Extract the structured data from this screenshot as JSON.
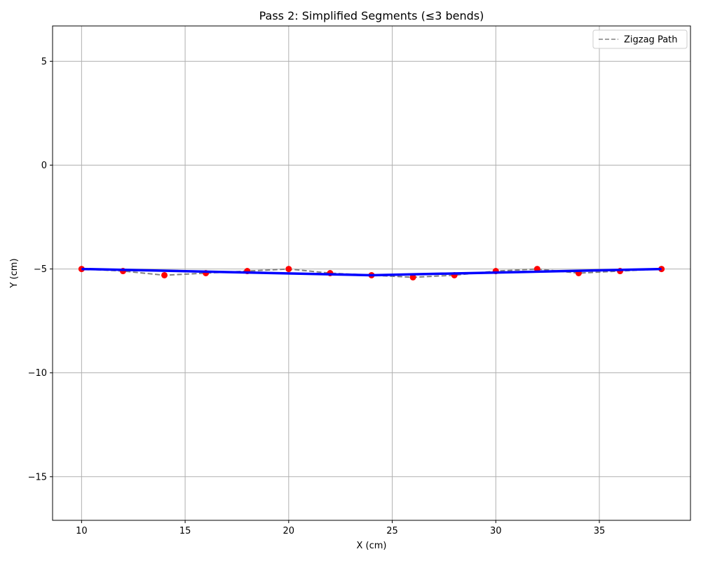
{
  "chart_data": {
    "type": "line",
    "title": "Pass 2: Simplified Segments (≤3 bends)",
    "xlabel": "X (cm)",
    "ylabel": "Y (cm)",
    "xlim": [
      8.6,
      39.4
    ],
    "ylim": [
      -17.1,
      6.7
    ],
    "xticks": [
      10,
      15,
      20,
      25,
      30,
      35
    ],
    "yticks": [
      5,
      0,
      -5,
      -10,
      -15
    ],
    "grid": true,
    "legend": {
      "placement": "top-right",
      "entries": [
        "Zigzag Path"
      ]
    },
    "series": [
      {
        "name": "Zigzag Path",
        "style": "dashed",
        "color": "#808080",
        "x": [
          10,
          12,
          14,
          16,
          18,
          20,
          22,
          24,
          26,
          28,
          30,
          32,
          34,
          36,
          38
        ],
        "y": [
          -5.0,
          -5.1,
          -5.3,
          -5.2,
          -5.1,
          -5.0,
          -5.2,
          -5.3,
          -5.4,
          -5.3,
          -5.1,
          -5.0,
          -5.2,
          -5.1,
          -5.0
        ]
      },
      {
        "style": "markers",
        "color": "#ff0000",
        "x": [
          10,
          12,
          14,
          16,
          18,
          20,
          22,
          24,
          26,
          28,
          30,
          32,
          34,
          36,
          38
        ],
        "y": [
          -5.0,
          -5.1,
          -5.3,
          -5.2,
          -5.1,
          -5.0,
          -5.2,
          -5.3,
          -5.4,
          -5.3,
          -5.1,
          -5.0,
          -5.2,
          -5.1,
          -5.0
        ]
      },
      {
        "style": "solid",
        "color": "#0000ff",
        "x": [
          10,
          24,
          38
        ],
        "y": [
          -5.0,
          -5.3,
          -5.0
        ]
      }
    ]
  }
}
